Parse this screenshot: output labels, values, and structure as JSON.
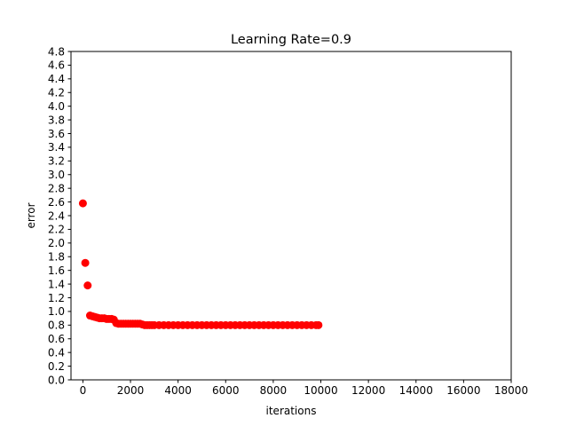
{
  "chart_data": {
    "type": "scatter",
    "title": "Learning Rate=0.9",
    "xlabel": "iterations",
    "ylabel": "error",
    "xlim": [
      -500,
      18000
    ],
    "ylim": [
      0.0,
      4.8
    ],
    "xticks": [
      0,
      2000,
      4000,
      6000,
      8000,
      10000,
      12000,
      14000,
      16000,
      18000
    ],
    "yticks": [
      0.0,
      0.2,
      0.4,
      0.6,
      0.8,
      1.0,
      1.2,
      1.4,
      1.6,
      1.8,
      2.0,
      2.2,
      2.4,
      2.6,
      2.8,
      3.0,
      3.2,
      3.4,
      3.6,
      3.8,
      4.0,
      4.2,
      4.4,
      4.6,
      4.8
    ],
    "grid": false,
    "legend": "none",
    "marker_color": "#ff0000",
    "series": [
      {
        "x": [
          0,
          100,
          200,
          300,
          400,
          500,
          600,
          700,
          800,
          900,
          1000,
          1100,
          1200,
          1300,
          1400,
          1500,
          1600,
          1700,
          1800,
          1900,
          2000,
          2100,
          2200,
          2300,
          2400,
          2500,
          2600,
          2700,
          2800,
          2900,
          3000,
          3200,
          3400,
          3600,
          3800,
          4000,
          4200,
          4400,
          4600,
          4800,
          5000,
          5200,
          5400,
          5600,
          5800,
          6000,
          6200,
          6400,
          6600,
          6800,
          7000,
          7200,
          7400,
          7600,
          7800,
          8000,
          8200,
          8400,
          8600,
          8800,
          9000,
          9200,
          9400,
          9600,
          9800,
          9900
        ],
        "y": [
          2.58,
          1.71,
          1.38,
          0.94,
          0.93,
          0.92,
          0.91,
          0.9,
          0.9,
          0.9,
          0.89,
          0.89,
          0.89,
          0.88,
          0.83,
          0.82,
          0.82,
          0.82,
          0.82,
          0.82,
          0.82,
          0.82,
          0.82,
          0.82,
          0.82,
          0.81,
          0.8,
          0.8,
          0.8,
          0.8,
          0.8,
          0.8,
          0.8,
          0.8,
          0.8,
          0.8,
          0.8,
          0.8,
          0.8,
          0.8,
          0.8,
          0.8,
          0.8,
          0.8,
          0.8,
          0.8,
          0.8,
          0.8,
          0.8,
          0.8,
          0.8,
          0.8,
          0.8,
          0.8,
          0.8,
          0.8,
          0.8,
          0.8,
          0.8,
          0.8,
          0.8,
          0.8,
          0.8,
          0.8,
          0.8,
          0.8
        ]
      }
    ]
  }
}
